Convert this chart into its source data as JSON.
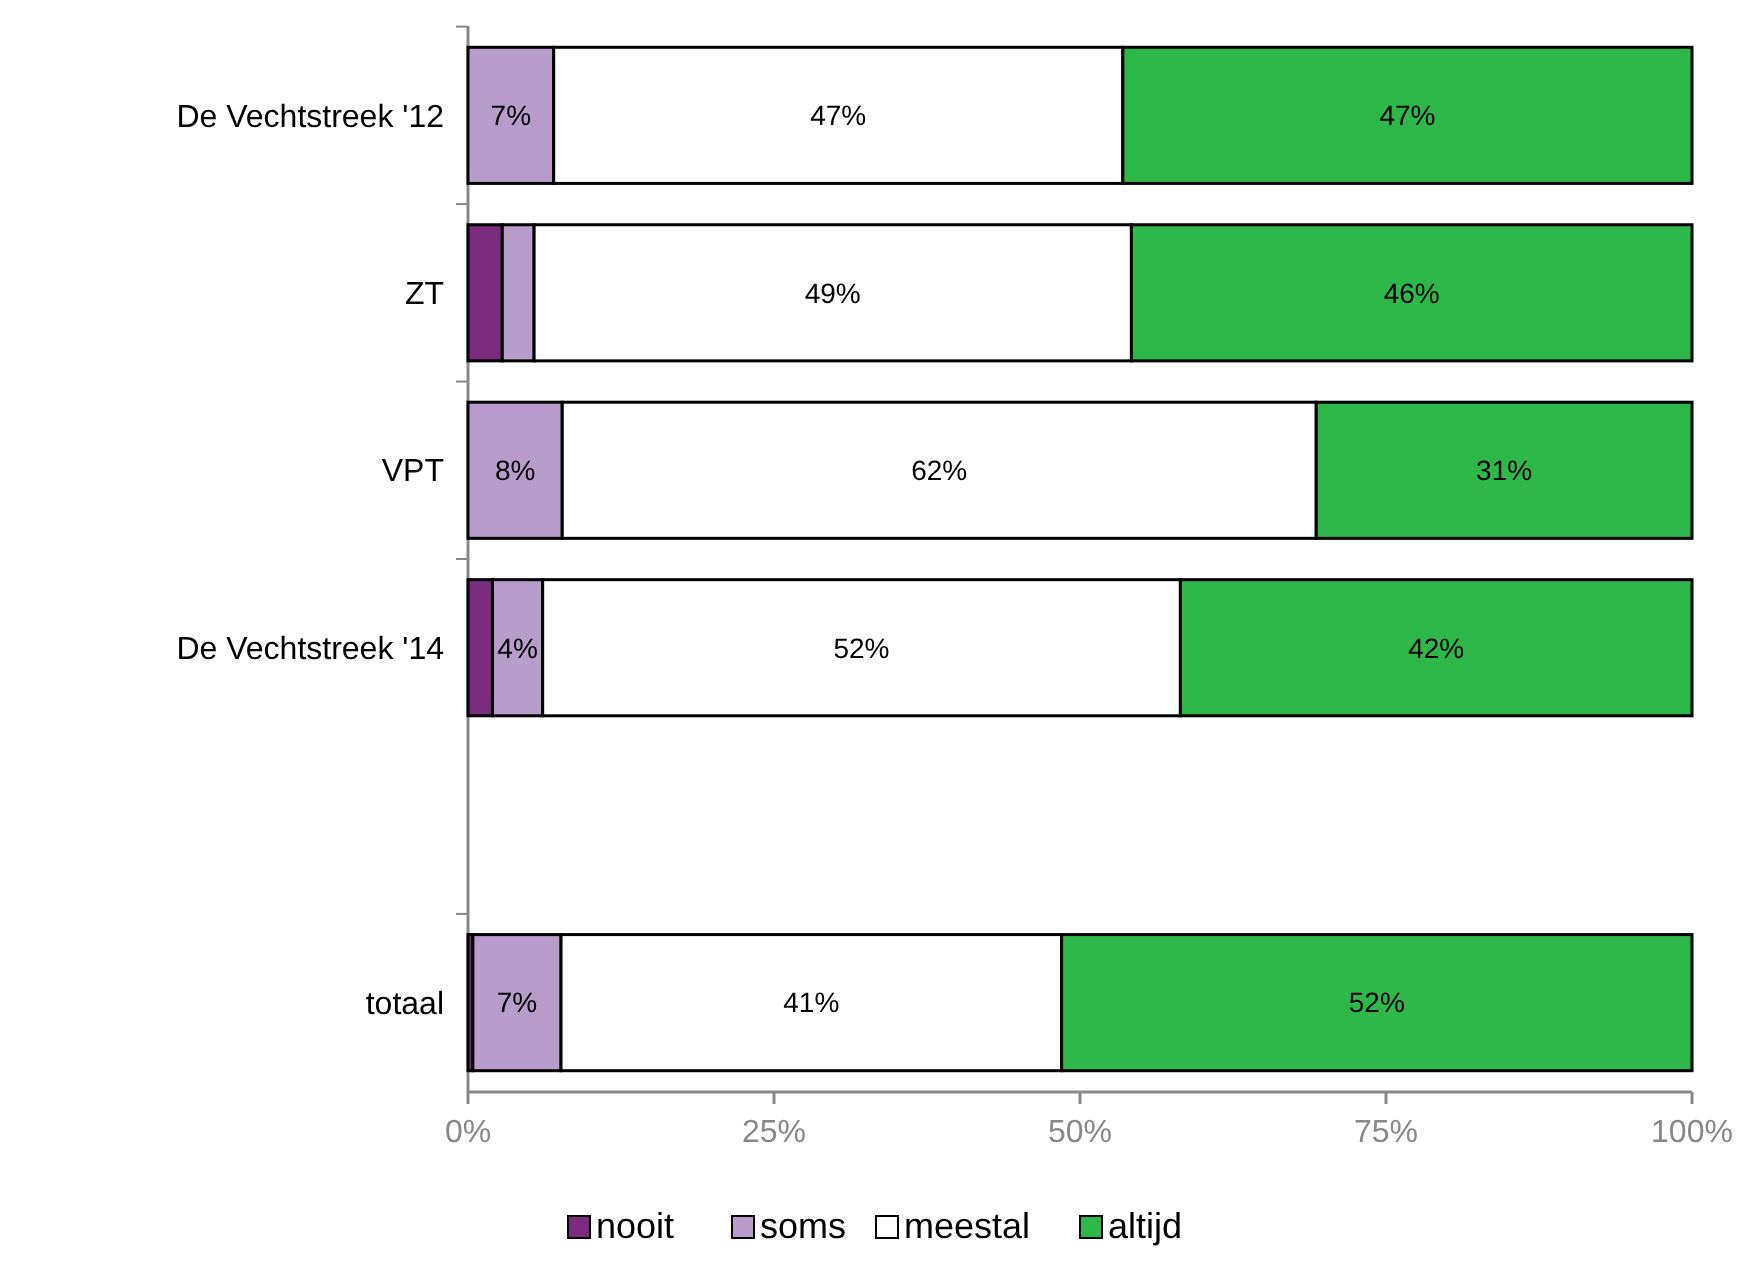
{
  "chart_data": {
    "type": "bar",
    "orientation": "horizontal",
    "stacked": true,
    "categories": [
      "De Vechtstreek '12",
      "ZT",
      "VPT",
      "De Vechtstreek '14",
      null,
      "totaal"
    ],
    "series": [
      {
        "name": "nooit",
        "color": "#7b2c7f",
        "values": [
          0,
          2.8,
          0,
          2,
          null,
          0.4
        ],
        "value_labels": [
          null,
          null,
          null,
          null,
          null,
          null
        ]
      },
      {
        "name": "soms",
        "color": "#b89ccb",
        "values": [
          7,
          2.6,
          7.7,
          4.1,
          null,
          7.2
        ],
        "value_labels": [
          "7%",
          null,
          "8%",
          "4%",
          null,
          "7%"
        ]
      },
      {
        "name": "meestal",
        "color": "#ffffff",
        "values": [
          46.5,
          48.8,
          61.6,
          52.1,
          null,
          40.9
        ],
        "value_labels": [
          "47%",
          "49%",
          "62%",
          "52%",
          null,
          "41%"
        ]
      },
      {
        "name": "altijd",
        "color": "#2fb84a",
        "values": [
          46.5,
          45.8,
          30.7,
          41.8,
          null,
          51.5
        ],
        "value_labels": [
          "47%",
          "46%",
          "31%",
          "42%",
          null,
          "52%"
        ]
      }
    ],
    "xlim": [
      0,
      100
    ],
    "xticks": [
      {
        "value": 0,
        "label": "0%"
      },
      {
        "value": 25,
        "label": "25%"
      },
      {
        "value": 50,
        "label": "50%"
      },
      {
        "value": 75,
        "label": "75%"
      },
      {
        "value": 100,
        "label": "100%"
      }
    ],
    "grid": false,
    "legend": "bottom"
  }
}
